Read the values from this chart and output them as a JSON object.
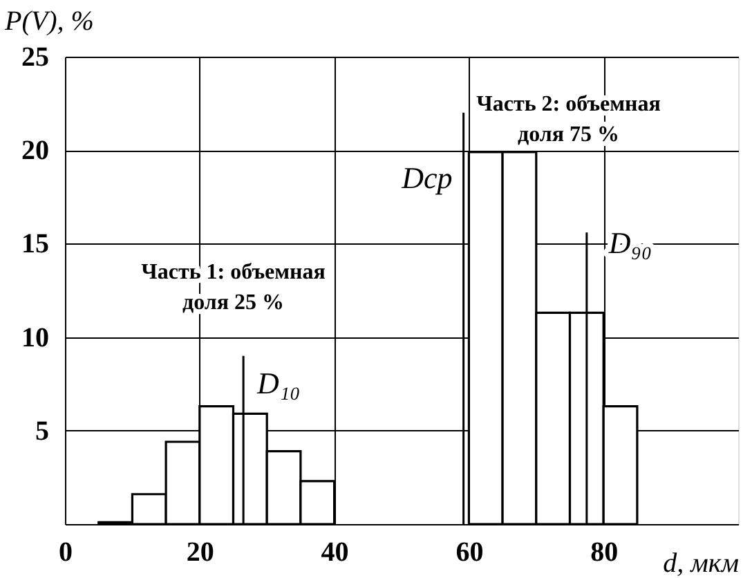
{
  "chart_data": {
    "type": "histogram",
    "xlabel": "d, мкм",
    "ylabel": "P(V), %",
    "bins": [
      5,
      10,
      15,
      20,
      25,
      30,
      35,
      40,
      45,
      50,
      55,
      60,
      65,
      70,
      75,
      80,
      85
    ],
    "values": [
      0.1,
      1.6,
      4.4,
      6.3,
      5.9,
      3.9,
      2.3,
      null,
      null,
      null,
      null,
      19.9,
      19.9,
      11.3,
      11.3,
      6.3
    ],
    "color": "#ffffff",
    "xlim": [
      0,
      100
    ],
    "xticks": [
      0,
      20,
      40,
      60,
      80
    ],
    "ylim": [
      0,
      25
    ],
    "yticks": [
      {
        "value": 0,
        "label": null
      },
      5,
      10,
      15,
      20,
      25
    ],
    "grid": true,
    "ref_lines": [
      {
        "axis": "x",
        "value": 26.5,
        "label": "D₁₀"
      },
      {
        "axis": "x",
        "value": 59.2,
        "label": "Dср"
      },
      {
        "axis": "x",
        "value": 77.5,
        "label": "D₉₀"
      }
    ],
    "annotations": [
      "Часть 1: объемная\nдоля 25 %",
      "Часть 2: объемная\nдоля 75 %"
    ]
  }
}
